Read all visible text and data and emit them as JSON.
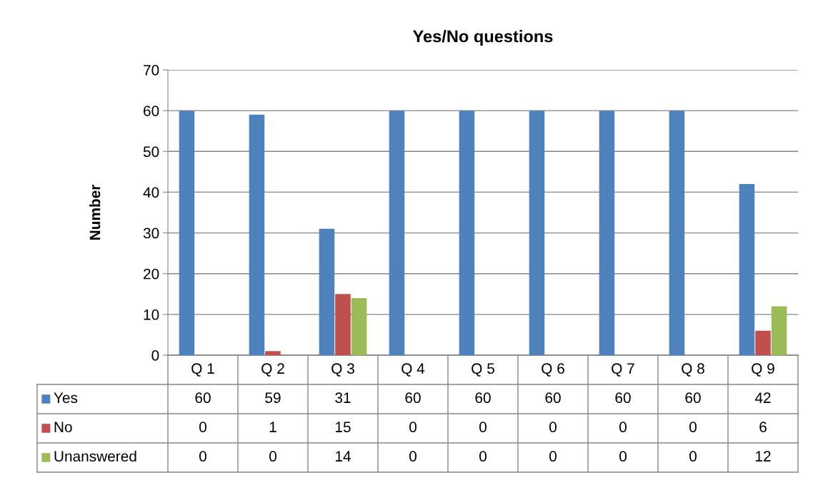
{
  "chart_data": {
    "type": "bar",
    "title": "Yes/No questions",
    "ylabel": "Number",
    "categories": [
      "Q 1",
      "Q 2",
      "Q 3",
      "Q 4",
      "Q 5",
      "Q 6",
      "Q 7",
      "Q 8",
      "Q 9"
    ],
    "series": [
      {
        "name": "Yes",
        "color": "#4f81bd",
        "values": [
          60,
          59,
          31,
          60,
          60,
          60,
          60,
          60,
          42
        ]
      },
      {
        "name": "No",
        "color": "#c0504d",
        "values": [
          0,
          1,
          15,
          0,
          0,
          0,
          0,
          0,
          6
        ]
      },
      {
        "name": "Unanswered",
        "color": "#9bbb59",
        "values": [
          0,
          0,
          14,
          0,
          0,
          0,
          0,
          0,
          12
        ]
      }
    ],
    "ylim": [
      0,
      70
    ],
    "yticks": [
      0,
      10,
      20,
      30,
      40,
      50,
      60,
      70
    ],
    "grid": "y",
    "data_labels": true,
    "legend": "bottom"
  }
}
